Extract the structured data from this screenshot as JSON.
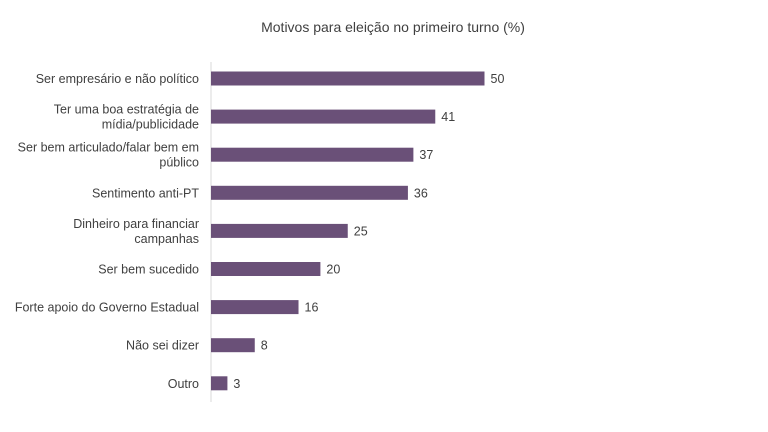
{
  "chart_data": {
    "type": "bar",
    "orientation": "horizontal",
    "title": "Motivos para eleição no primeiro turno (%)",
    "categories": [
      "Ser empresário e não político",
      "Ter uma boa estratégia de mídia/publicidade",
      "Ser bem articulado/falar bem em público",
      "Sentimento anti-PT",
      "Dinheiro para financiar campanhas",
      "Ser bem sucedido",
      "Forte apoio do Governo Estadual",
      "Não sei dizer",
      "Outro"
    ],
    "category_lines": [
      [
        "Ser empresário e não político"
      ],
      [
        "Ter uma boa estratégia de",
        "mídia/publicidade"
      ],
      [
        "Ser bem articulado/falar bem em",
        "público"
      ],
      [
        "Sentimento anti-PT"
      ],
      [
        "Dinheiro para financiar",
        "campanhas"
      ],
      [
        "Ser bem sucedido"
      ],
      [
        "Forte apoio do Governo Estadual"
      ],
      [
        "Não sei dizer"
      ],
      [
        "Outro"
      ]
    ],
    "values": [
      50,
      41,
      37,
      36,
      25,
      20,
      16,
      8,
      3
    ],
    "xlim": [
      0,
      55
    ],
    "grid": false,
    "legend": "none",
    "bar_color": "#6a5078"
  }
}
